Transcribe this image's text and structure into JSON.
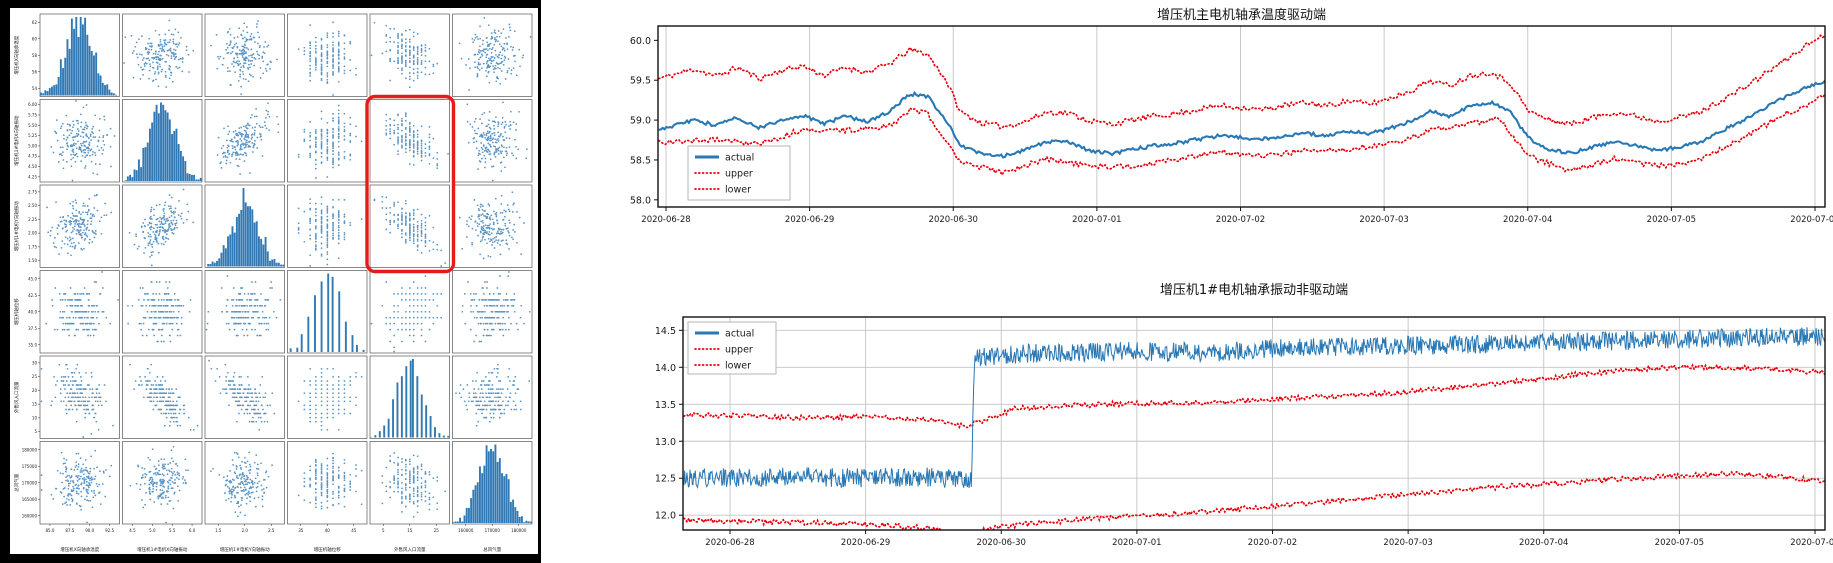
{
  "colors": {
    "series_blue": "#2878b5",
    "bounds_red": "#e8000b",
    "highlight_red": "#e51c1c",
    "grid": "#c3c3c3",
    "panel_bg": "#ffffff",
    "page_bg": "#000000"
  },
  "chart_data": [
    {
      "type": "scatter",
      "subtype": "pairplot-matrix",
      "rows": 6,
      "cols": 6,
      "variables": [
        "增压机X向轴承温度",
        "增压机1#电机X向轴振动",
        "增压机1#电机Y向轴振动",
        "增压机轴位移",
        "外售风入口流量",
        "总风气量"
      ],
      "row_ticks": [
        [
          "62",
          "60",
          "58",
          "56",
          "54"
        ],
        [
          "6.00",
          "5.75",
          "5.50",
          "5.25",
          "5.00",
          "4.75",
          "4.50",
          "4.25"
        ],
        [
          "2.75",
          "2.50",
          "2.25",
          "2.00",
          "1.75",
          "1.50"
        ],
        [
          "45.0",
          "42.5",
          "40.0",
          "37.5",
          "35.0"
        ],
        [
          "30",
          "25",
          "20",
          "15",
          "10",
          "5"
        ],
        [
          "180000",
          "175000",
          "170000",
          "165000",
          "160000"
        ]
      ],
      "col_ticks": [
        [
          "85.0",
          "87.5",
          "90.0",
          "92.5"
        ],
        [
          "4.5",
          "5.0",
          "5.5",
          "6.0"
        ],
        [
          "1.5",
          "2.0",
          "2.5"
        ],
        [
          "35",
          "40",
          "45"
        ],
        [
          "5",
          "15",
          "25"
        ],
        [
          "160000",
          "170000",
          "180000"
        ]
      ],
      "point_color": "#3179b5",
      "hist_color": "#3179b5",
      "diagonal": "histogram",
      "discrete_levels": [
        0,
        0,
        0,
        13,
        19,
        0
      ],
      "corr": [
        [
          1,
          0.05,
          0.05,
          0,
          -0.35,
          0
        ],
        [
          0.05,
          1,
          0.6,
          0.05,
          -0.68,
          0.05
        ],
        [
          0.05,
          0.6,
          1,
          0.05,
          -0.68,
          0.05
        ],
        [
          0,
          0.05,
          0.05,
          1,
          0.15,
          0
        ],
        [
          -0.35,
          -0.68,
          -0.68,
          0.15,
          1,
          0
        ],
        [
          0,
          0.05,
          0.05,
          0,
          0,
          1
        ]
      ],
      "highlight": {
        "col": 4,
        "row_start": 1,
        "row_end": 2,
        "color": "#e51c1c"
      }
    },
    {
      "type": "line",
      "title": "增压机主电机轴承温度驱动端",
      "x_ticks": [
        "2020-06-28",
        "2020-06-29",
        "2020-06-30",
        "2020-07-01",
        "2020-07-02",
        "2020-07-03",
        "2020-07-04",
        "2020-07-05",
        "2020-07-06"
      ],
      "y_ticks": [
        "58.0",
        "58.5",
        "59.0",
        "59.5",
        "60.0"
      ],
      "y_range": [
        57.91,
        60.18
      ],
      "grid": "vertical",
      "legend": {
        "entries": [
          {
            "label": "actual",
            "color": "#2878b5",
            "style": "solid"
          },
          {
            "label": "upper",
            "color": "#e8000b",
            "style": "dotted"
          },
          {
            "label": "lower",
            "color": "#e8000b",
            "style": "dotted"
          }
        ]
      },
      "series": [
        {
          "name": "upper",
          "color": "#e8000b",
          "style": "dotted",
          "width": 1.7,
          "noise": 0.035,
          "samples": 520,
          "anchors": [
            [
              -0.05,
              59.52
            ],
            [
              0.2,
              59.64
            ],
            [
              0.35,
              59.55
            ],
            [
              0.5,
              59.66
            ],
            [
              0.65,
              59.52
            ],
            [
              0.8,
              59.62
            ],
            [
              0.95,
              59.68
            ],
            [
              1.1,
              59.56
            ],
            [
              1.25,
              59.66
            ],
            [
              1.4,
              59.6
            ],
            [
              1.55,
              59.7
            ],
            [
              1.7,
              59.88
            ],
            [
              1.82,
              59.83
            ],
            [
              1.95,
              59.5
            ],
            [
              2.05,
              59.1
            ],
            [
              2.2,
              58.96
            ],
            [
              2.35,
              58.92
            ],
            [
              2.5,
              58.98
            ],
            [
              2.65,
              59.1
            ],
            [
              2.8,
              59.09
            ],
            [
              2.95,
              58.99
            ],
            [
              3.1,
              58.95
            ],
            [
              3.25,
              59.0
            ],
            [
              3.4,
              59.05
            ],
            [
              3.55,
              59.08
            ],
            [
              3.7,
              59.13
            ],
            [
              3.85,
              59.18
            ],
            [
              4.0,
              59.16
            ],
            [
              4.15,
              59.13
            ],
            [
              4.3,
              59.18
            ],
            [
              4.45,
              59.22
            ],
            [
              4.6,
              59.18
            ],
            [
              4.75,
              59.24
            ],
            [
              4.9,
              59.2
            ],
            [
              5.05,
              59.28
            ],
            [
              5.2,
              59.38
            ],
            [
              5.32,
              59.5
            ],
            [
              5.45,
              59.43
            ],
            [
              5.6,
              59.56
            ],
            [
              5.75,
              59.6
            ],
            [
              5.88,
              59.46
            ],
            [
              6.0,
              59.12
            ],
            [
              6.15,
              59.0
            ],
            [
              6.3,
              58.95
            ],
            [
              6.45,
              59.03
            ],
            [
              6.6,
              59.1
            ],
            [
              6.75,
              59.05
            ],
            [
              6.9,
              58.99
            ],
            [
              7.05,
              59.03
            ],
            [
              7.2,
              59.1
            ],
            [
              7.35,
              59.25
            ],
            [
              7.5,
              59.4
            ],
            [
              7.65,
              59.58
            ],
            [
              7.8,
              59.76
            ],
            [
              7.95,
              59.95
            ],
            [
              8.07,
              60.08
            ]
          ]
        },
        {
          "name": "lower",
          "color": "#e8000b",
          "style": "dotted",
          "width": 1.7,
          "noise": 0.035,
          "samples": 520,
          "anchors": [
            [
              -0.05,
              58.72
            ],
            [
              0.35,
              58.76
            ],
            [
              0.65,
              58.7
            ],
            [
              0.95,
              58.88
            ],
            [
              1.25,
              58.87
            ],
            [
              1.55,
              58.92
            ],
            [
              1.7,
              59.12
            ],
            [
              1.82,
              59.08
            ],
            [
              2.05,
              58.48
            ],
            [
              2.35,
              58.33
            ],
            [
              2.65,
              58.52
            ],
            [
              2.95,
              58.42
            ],
            [
              3.25,
              58.42
            ],
            [
              3.55,
              58.5
            ],
            [
              3.85,
              58.6
            ],
            [
              4.15,
              58.55
            ],
            [
              4.45,
              58.62
            ],
            [
              4.75,
              58.64
            ],
            [
              5.05,
              58.7
            ],
            [
              5.35,
              58.88
            ],
            [
              5.65,
              58.97
            ],
            [
              5.8,
              59.02
            ],
            [
              6.0,
              58.55
            ],
            [
              6.3,
              58.36
            ],
            [
              6.6,
              58.52
            ],
            [
              6.9,
              58.42
            ],
            [
              7.2,
              58.5
            ],
            [
              7.5,
              58.78
            ],
            [
              7.8,
              59.08
            ],
            [
              8.07,
              59.3
            ]
          ]
        },
        {
          "name": "actual",
          "color": "#2878b5",
          "style": "solid",
          "width": 2.1,
          "noise": 0.022,
          "samples": 620,
          "anchors": [
            [
              -0.05,
              58.88
            ],
            [
              0.2,
              59.0
            ],
            [
              0.35,
              58.93
            ],
            [
              0.5,
              59.03
            ],
            [
              0.65,
              58.9
            ],
            [
              0.8,
              59.0
            ],
            [
              0.95,
              59.06
            ],
            [
              1.1,
              58.95
            ],
            [
              1.25,
              59.05
            ],
            [
              1.4,
              58.98
            ],
            [
              1.55,
              59.1
            ],
            [
              1.7,
              59.33
            ],
            [
              1.82,
              59.3
            ],
            [
              1.95,
              59.0
            ],
            [
              2.05,
              58.68
            ],
            [
              2.2,
              58.58
            ],
            [
              2.35,
              58.55
            ],
            [
              2.5,
              58.62
            ],
            [
              2.65,
              58.73
            ],
            [
              2.8,
              58.72
            ],
            [
              2.95,
              58.62
            ],
            [
              3.1,
              58.58
            ],
            [
              3.25,
              58.63
            ],
            [
              3.4,
              58.68
            ],
            [
              3.55,
              58.71
            ],
            [
              3.7,
              58.76
            ],
            [
              3.85,
              58.8
            ],
            [
              4.0,
              58.78
            ],
            [
              4.15,
              58.76
            ],
            [
              4.3,
              58.8
            ],
            [
              4.45,
              58.84
            ],
            [
              4.6,
              58.8
            ],
            [
              4.75,
              58.86
            ],
            [
              4.9,
              58.83
            ],
            [
              5.05,
              58.9
            ],
            [
              5.2,
              59.0
            ],
            [
              5.32,
              59.12
            ],
            [
              5.45,
              59.05
            ],
            [
              5.6,
              59.18
            ],
            [
              5.75,
              59.22
            ],
            [
              5.88,
              59.1
            ],
            [
              6.0,
              58.78
            ],
            [
              6.15,
              58.63
            ],
            [
              6.3,
              58.58
            ],
            [
              6.45,
              58.66
            ],
            [
              6.6,
              58.73
            ],
            [
              6.75,
              58.68
            ],
            [
              6.9,
              58.62
            ],
            [
              7.05,
              58.66
            ],
            [
              7.2,
              58.72
            ],
            [
              7.35,
              58.86
            ],
            [
              7.5,
              59.0
            ],
            [
              7.65,
              59.15
            ],
            [
              7.8,
              59.3
            ],
            [
              7.95,
              59.42
            ],
            [
              8.07,
              59.48
            ]
          ]
        }
      ]
    },
    {
      "type": "line",
      "title": "增压机1#电机轴承振动非驱动端",
      "x_ticks": [
        "2020-06-28",
        "2020-06-29",
        "2020-06-30",
        "2020-07-01",
        "2020-07-02",
        "2020-07-03",
        "2020-07-04",
        "2020-07-05",
        "2020-07-06"
      ],
      "y_ticks": [
        "12.0",
        "12.5",
        "13.0",
        "13.5",
        "14.0",
        "14.5"
      ],
      "y_range": [
        11.8,
        14.68
      ],
      "grid": "both",
      "legend": {
        "entries": [
          {
            "label": "actual",
            "color": "#2878b5",
            "style": "solid"
          },
          {
            "label": "upper",
            "color": "#e8000b",
            "style": "dotted"
          },
          {
            "label": "lower",
            "color": "#e8000b",
            "style": "dotted"
          }
        ]
      },
      "series": [
        {
          "name": "upper",
          "color": "#e8000b",
          "style": "dotted",
          "width": 1.7,
          "noise": 0.035,
          "samples": 700,
          "anchors": [
            [
              -0.34,
              13.36
            ],
            [
              0.5,
              13.32
            ],
            [
              1.0,
              13.33
            ],
            [
              1.5,
              13.28
            ],
            [
              1.72,
              13.2
            ],
            [
              1.9,
              13.3
            ],
            [
              2.1,
              13.44
            ],
            [
              2.4,
              13.48
            ],
            [
              2.8,
              13.5
            ],
            [
              3.2,
              13.52
            ],
            [
              3.6,
              13.52
            ],
            [
              4.0,
              13.57
            ],
            [
              4.4,
              13.6
            ],
            [
              4.8,
              13.64
            ],
            [
              5.2,
              13.7
            ],
            [
              5.6,
              13.77
            ],
            [
              6.0,
              13.85
            ],
            [
              6.4,
              13.93
            ],
            [
              6.8,
              13.99
            ],
            [
              7.2,
              14.0
            ],
            [
              7.6,
              13.99
            ],
            [
              8.07,
              13.93
            ]
          ]
        },
        {
          "name": "lower",
          "color": "#e8000b",
          "style": "dotted",
          "width": 1.7,
          "noise": 0.035,
          "samples": 700,
          "anchors": [
            [
              -0.34,
              11.93
            ],
            [
              0.5,
              11.9
            ],
            [
              1.0,
              11.88
            ],
            [
              1.5,
              11.82
            ],
            [
              1.72,
              11.73
            ],
            [
              1.95,
              11.83
            ],
            [
              2.3,
              11.9
            ],
            [
              2.7,
              11.96
            ],
            [
              3.1,
              12.0
            ],
            [
              3.5,
              12.05
            ],
            [
              4.0,
              12.12
            ],
            [
              4.5,
              12.2
            ],
            [
              5.0,
              12.28
            ],
            [
              5.5,
              12.36
            ],
            [
              6.0,
              12.42
            ],
            [
              6.5,
              12.48
            ],
            [
              7.0,
              12.53
            ],
            [
              7.4,
              12.56
            ],
            [
              7.7,
              12.52
            ],
            [
              8.07,
              12.46
            ]
          ]
        },
        {
          "name": "actual",
          "color": "#2878b5",
          "style": "solid",
          "width": 1.0,
          "noise": 0.13,
          "samples": 1500,
          "anchors": [
            [
              -0.34,
              12.5
            ],
            [
              0.5,
              12.52
            ],
            [
              1.0,
              12.5
            ],
            [
              1.4,
              12.52
            ],
            [
              1.78,
              12.48
            ],
            [
              1.8,
              14.12
            ],
            [
              2.0,
              14.17
            ],
            [
              2.5,
              14.2
            ],
            [
              3.0,
              14.22
            ],
            [
              3.5,
              14.2
            ],
            [
              4.0,
              14.25
            ],
            [
              4.5,
              14.27
            ],
            [
              5.0,
              14.3
            ],
            [
              5.5,
              14.3
            ],
            [
              6.0,
              14.34
            ],
            [
              6.5,
              14.35
            ],
            [
              7.0,
              14.38
            ],
            [
              7.5,
              14.4
            ],
            [
              8.07,
              14.42
            ]
          ]
        }
      ]
    }
  ]
}
